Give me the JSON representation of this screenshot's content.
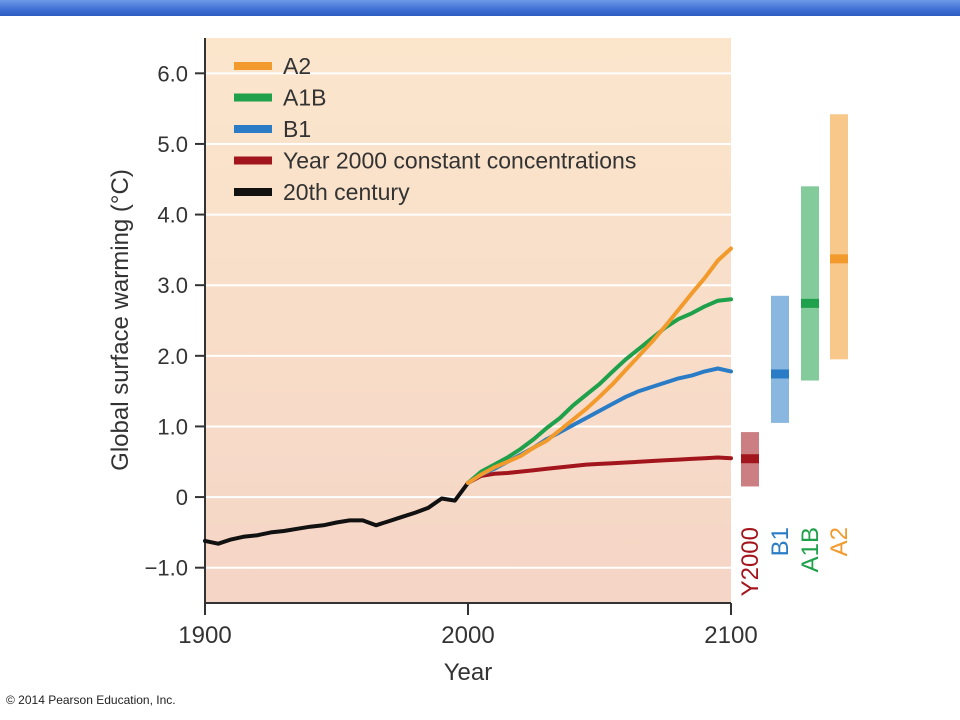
{
  "header": {
    "accent": "#3e6fd2"
  },
  "footer": {
    "copyright": "© 2014 Pearson Education, Inc."
  },
  "chart_data": {
    "type": "line",
    "title": "",
    "xlabel": "Year",
    "ylabel": "Global surface warming (°C)",
    "xlim": [
      1900,
      2100
    ],
    "ylim": [
      -1.5,
      6.5
    ],
    "x_ticks": [
      1900,
      2000,
      2100
    ],
    "x_tick_labels": [
      "1900",
      "2000",
      "2100"
    ],
    "y_ticks": [
      -1.0,
      0,
      1.0,
      2.0,
      3.0,
      4.0,
      5.0,
      6.0
    ],
    "y_tick_labels": [
      "−1.0",
      "0",
      "1.0",
      "2.0",
      "3.0",
      "4.0",
      "5.0",
      "6.0"
    ],
    "grid": true,
    "legend_position": "top-left",
    "background": {
      "top": "#fbe6cc",
      "bottom": "#f5d5c6"
    },
    "series": [
      {
        "name": "A2",
        "color": "#f39a2c",
        "x": [
          2000,
          2005,
          2010,
          2015,
          2020,
          2025,
          2030,
          2035,
          2040,
          2045,
          2050,
          2055,
          2060,
          2065,
          2070,
          2075,
          2080,
          2085,
          2090,
          2095,
          2100
        ],
        "y": [
          0.2,
          0.32,
          0.42,
          0.5,
          0.58,
          0.7,
          0.8,
          0.95,
          1.1,
          1.25,
          1.42,
          1.6,
          1.8,
          2.0,
          2.2,
          2.42,
          2.65,
          2.88,
          3.1,
          3.35,
          3.52
        ]
      },
      {
        "name": "A1B",
        "color": "#1fa04a",
        "x": [
          2000,
          2005,
          2010,
          2015,
          2020,
          2025,
          2030,
          2035,
          2040,
          2045,
          2050,
          2055,
          2060,
          2065,
          2070,
          2075,
          2080,
          2085,
          2090,
          2095,
          2100
        ],
        "y": [
          0.2,
          0.36,
          0.46,
          0.56,
          0.68,
          0.82,
          0.98,
          1.12,
          1.3,
          1.45,
          1.6,
          1.78,
          1.95,
          2.1,
          2.25,
          2.4,
          2.52,
          2.6,
          2.7,
          2.78,
          2.8
        ]
      },
      {
        "name": "B1",
        "color": "#2a7cc6",
        "x": [
          2000,
          2005,
          2010,
          2015,
          2020,
          2025,
          2030,
          2035,
          2040,
          2045,
          2050,
          2055,
          2060,
          2065,
          2070,
          2075,
          2080,
          2085,
          2090,
          2095,
          2100
        ],
        "y": [
          0.2,
          0.32,
          0.4,
          0.5,
          0.6,
          0.7,
          0.82,
          0.92,
          1.02,
          1.12,
          1.22,
          1.32,
          1.42,
          1.5,
          1.56,
          1.62,
          1.68,
          1.72,
          1.78,
          1.82,
          1.78
        ]
      },
      {
        "name": "Year 2000 constant concentrations",
        "color": "#a3151c",
        "x": [
          2000,
          2005,
          2010,
          2015,
          2020,
          2025,
          2030,
          2035,
          2040,
          2045,
          2050,
          2055,
          2060,
          2065,
          2070,
          2075,
          2080,
          2085,
          2090,
          2095,
          2100
        ],
        "y": [
          0.2,
          0.3,
          0.33,
          0.34,
          0.36,
          0.38,
          0.4,
          0.42,
          0.44,
          0.46,
          0.47,
          0.48,
          0.49,
          0.5,
          0.51,
          0.52,
          0.53,
          0.54,
          0.55,
          0.56,
          0.55
        ]
      },
      {
        "name": "20th century",
        "color": "#111111",
        "x": [
          1900,
          1905,
          1910,
          1915,
          1920,
          1925,
          1930,
          1935,
          1940,
          1945,
          1950,
          1955,
          1960,
          1965,
          1970,
          1975,
          1980,
          1985,
          1990,
          1995,
          2000
        ],
        "y": [
          -0.62,
          -0.66,
          -0.6,
          -0.56,
          -0.54,
          -0.5,
          -0.48,
          -0.45,
          -0.42,
          -0.4,
          -0.36,
          -0.33,
          -0.33,
          -0.4,
          -0.34,
          -0.28,
          -0.22,
          -0.15,
          -0.02,
          -0.05,
          0.2
        ]
      }
    ],
    "ranges": [
      {
        "name": "Y2000",
        "color": "#a3151c",
        "low": 0.15,
        "high": 0.92,
        "best": 0.55
      },
      {
        "name": "B1",
        "color": "#2a7cc6",
        "low": 1.05,
        "high": 2.85,
        "best": 1.75
      },
      {
        "name": "A1B",
        "color": "#1fa04a",
        "low": 1.65,
        "high": 4.4,
        "best": 2.75
      },
      {
        "name": "A2",
        "color": "#f39a2c",
        "low": 1.95,
        "high": 5.42,
        "best": 3.38
      }
    ]
  }
}
